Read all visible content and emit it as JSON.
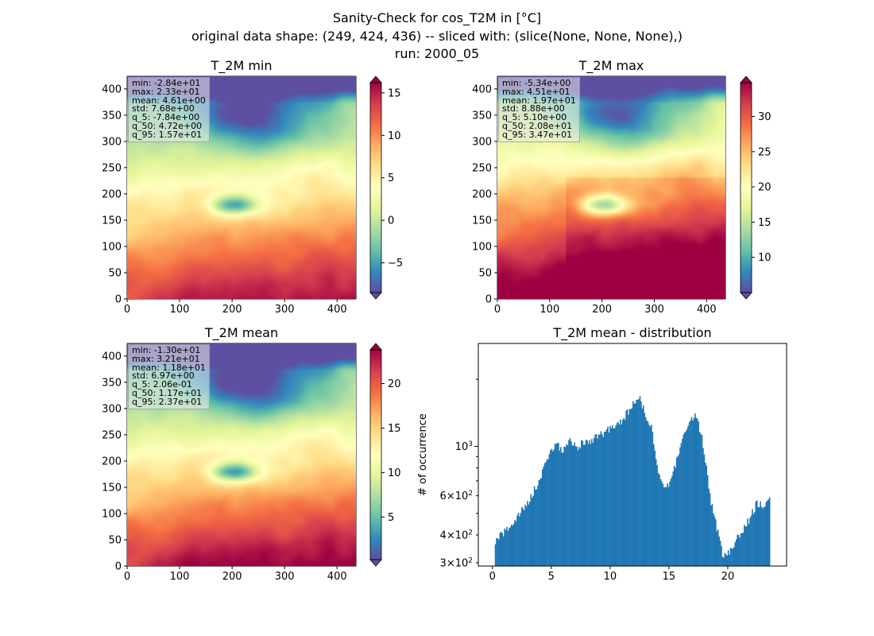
{
  "figure": {
    "title_lines": [
      "Sanity-Check for cos_T2M in [°C]",
      "original data shape: (249, 424, 436) -- sliced with: (slice(None, None, None),)",
      "run: 2000_05"
    ]
  },
  "chart_data": [
    {
      "type": "heatmap",
      "title": "T_2M min",
      "xlim": [
        0,
        436
      ],
      "ylim": [
        0,
        424
      ],
      "xticks": [
        0,
        100,
        200,
        300,
        400
      ],
      "yticks": [
        0,
        50,
        100,
        150,
        200,
        250,
        300,
        350,
        400
      ],
      "colormap": "Spectral_r",
      "colorbar": {
        "ticks": [
          -5,
          0,
          5,
          10,
          15
        ],
        "range": [
          -8.5,
          16.2
        ],
        "extend": "both"
      },
      "stats": [
        "min: -2.84e+01",
        "max: 2.33e+01",
        "mean: 4.61e+00",
        "std: 7.68e+00",
        "q_5: -7.84e+00",
        "q_50: 4.72e+00",
        "q_95: 1.57e+01"
      ]
    },
    {
      "type": "heatmap",
      "title": "T_2M max",
      "xlim": [
        0,
        436
      ],
      "ylim": [
        0,
        424
      ],
      "xticks": [
        0,
        100,
        200,
        300,
        400
      ],
      "yticks": [
        0,
        50,
        100,
        150,
        200,
        250,
        300,
        350,
        400
      ],
      "colormap": "Spectral_r",
      "colorbar": {
        "ticks": [
          10,
          15,
          20,
          25,
          30
        ],
        "range": [
          5.0,
          34.8
        ],
        "extend": "both"
      },
      "stats": [
        "min: -5.34e+00",
        "max: 4.51e+01",
        "mean: 1.97e+01",
        "std: 8.88e+00",
        "q_5: 5.10e+00",
        "q_50: 2.08e+01",
        "q_95: 3.47e+01"
      ]
    },
    {
      "type": "heatmap",
      "title": "T_2M mean",
      "xlim": [
        0,
        436
      ],
      "ylim": [
        0,
        424
      ],
      "xticks": [
        0,
        100,
        200,
        300,
        400
      ],
      "yticks": [
        0,
        50,
        100,
        150,
        200,
        250,
        300,
        350,
        400
      ],
      "colormap": "Spectral_r",
      "colorbar": {
        "ticks": [
          5,
          10,
          15,
          20
        ],
        "range": [
          0.2,
          23.8
        ],
        "extend": "both"
      },
      "stats": [
        "min: -1.30e+01",
        "max: 3.21e+01",
        "mean: 1.18e+01",
        "std: 6.97e+00",
        "q_5: 2.06e-01",
        "q_50: 1.17e+01",
        "q_95: 2.37e+01"
      ]
    },
    {
      "type": "bar",
      "title": "T_2M mean - distribution",
      "ylabel": "# of occurrence",
      "xlabel": "",
      "yscale": "log",
      "xlim": [
        -1.2,
        25.0
      ],
      "ylim": [
        290,
        2900
      ],
      "xticks": [
        0,
        5,
        10,
        15,
        20
      ],
      "yticks_major": [
        1000
      ],
      "yticks_major_labels": [
        "10^3"
      ],
      "yticks_minor": [
        300,
        400,
        600
      ],
      "yticks_minor_labels": [
        "3 × 10^2",
        "4 × 10^2",
        "6 × 10^2"
      ],
      "bar_color": "#1f77b4",
      "points": [
        [
          0.2,
          370
        ],
        [
          1.0,
          410
        ],
        [
          2.0,
          470
        ],
        [
          3.0,
          560
        ],
        [
          4.0,
          700
        ],
        [
          4.8,
          920
        ],
        [
          5.4,
          1030
        ],
        [
          6.0,
          950
        ],
        [
          6.6,
          1060
        ],
        [
          7.2,
          1000
        ],
        [
          8.0,
          1050
        ],
        [
          9.0,
          1100
        ],
        [
          10.0,
          1200
        ],
        [
          11.0,
          1300
        ],
        [
          12.0,
          1550
        ],
        [
          12.6,
          1650
        ],
        [
          13.0,
          1350
        ],
        [
          13.5,
          1250
        ],
        [
          14.0,
          800
        ],
        [
          14.5,
          650
        ],
        [
          15.2,
          700
        ],
        [
          15.6,
          850
        ],
        [
          16.2,
          1100
        ],
        [
          17.2,
          1400
        ],
        [
          17.8,
          1100
        ],
        [
          18.2,
          800
        ],
        [
          18.6,
          550
        ],
        [
          19.2,
          400
        ],
        [
          19.6,
          315
        ],
        [
          20.0,
          330
        ],
        [
          21.0,
          400
        ],
        [
          22.0,
          490
        ],
        [
          22.5,
          560
        ],
        [
          23.0,
          540
        ],
        [
          23.6,
          570
        ]
      ]
    }
  ]
}
